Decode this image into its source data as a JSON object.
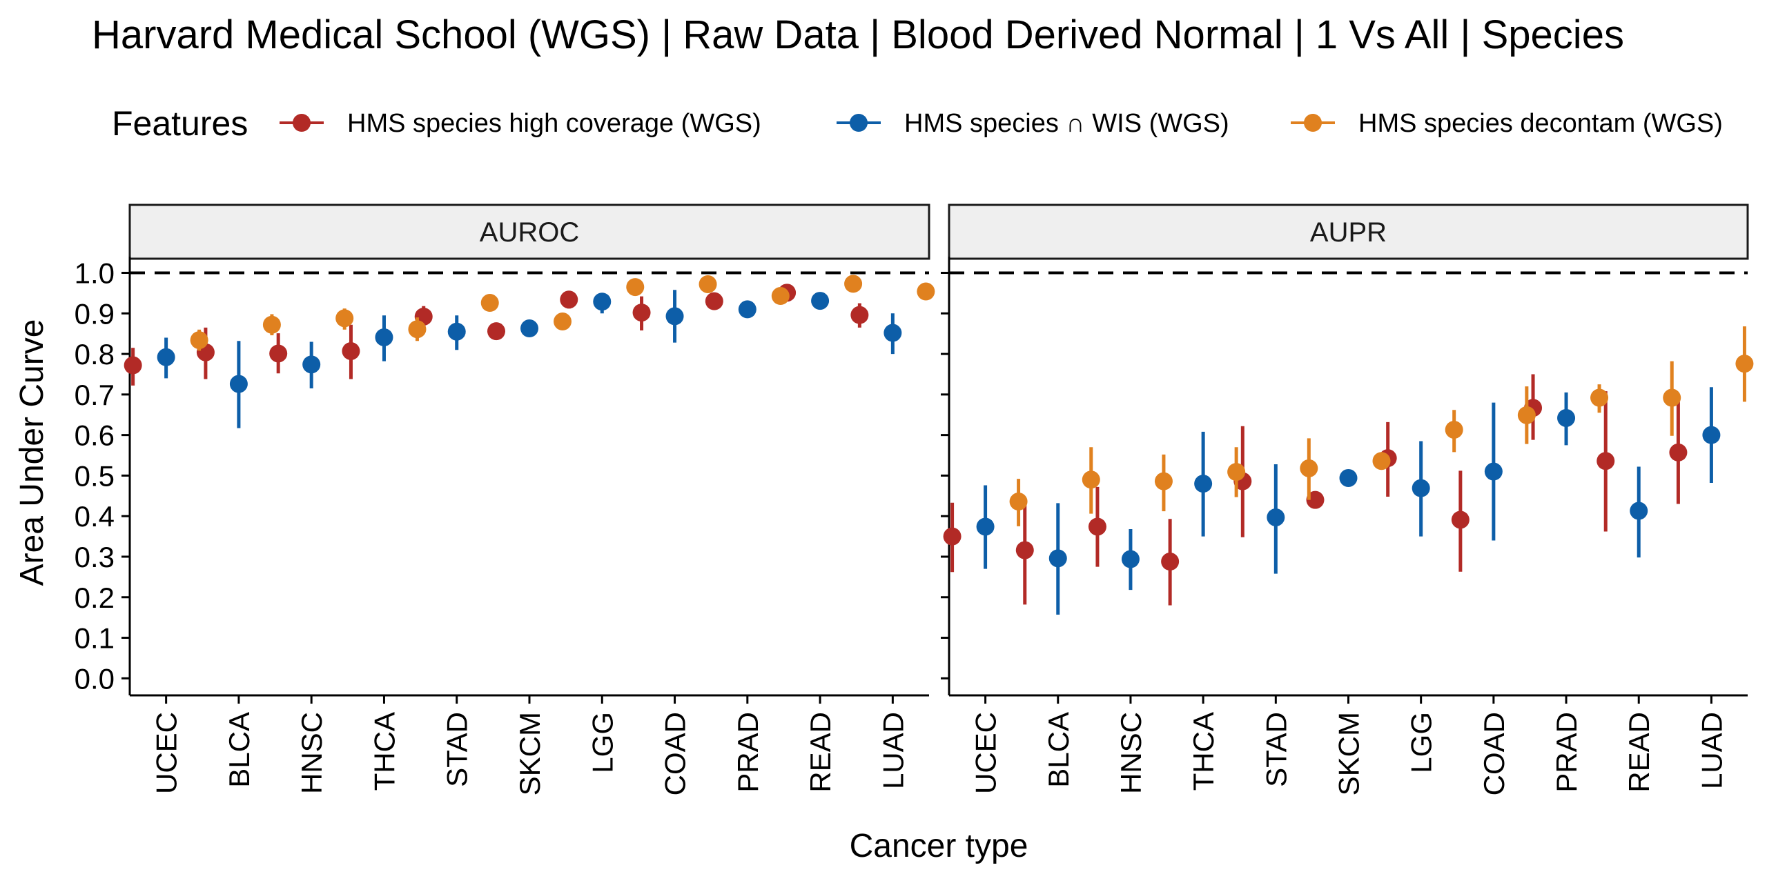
{
  "chart_data": {
    "type": "scatter",
    "title": "Harvard Medical School (WGS) | Raw Data | Blood Derived Normal | 1 Vs All | Species",
    "legend": {
      "title": "Features",
      "placement": "top",
      "entries": [
        {
          "name": "HMS species high coverage (WGS)",
          "color": "#B22A26"
        },
        {
          "name": "HMS species ∩ WIS (WGS)",
          "color": "#0D5EA8"
        },
        {
          "name": "HMS species decontam (WGS)",
          "color": "#E0811F"
        }
      ]
    },
    "xlabel": "Cancer type",
    "ylabel": "Area Under Curve",
    "ylim": [
      0,
      1
    ],
    "yticks": [
      "0.0",
      "0.1",
      "0.2",
      "0.3",
      "0.4",
      "0.5",
      "0.6",
      "0.7",
      "0.8",
      "0.9",
      "1.0"
    ],
    "reference_line": 1.0,
    "categories": [
      "UCEC",
      "BLCA",
      "HNSC",
      "THCA",
      "STAD",
      "SKCM",
      "LGG",
      "COAD",
      "PRAD",
      "READ",
      "LUAD"
    ],
    "panels": [
      {
        "name": "AUROC",
        "series": [
          {
            "name": "HMS species high coverage (WGS)",
            "values": [
              0.772,
              0.804,
              0.801,
              0.807,
              0.892,
              0.856,
              0.934,
              0.902,
              0.93,
              0.951,
              0.896
            ],
            "lower": [
              0.722,
              0.738,
              0.752,
              0.738,
              0.865,
              0.856,
              0.912,
              0.858,
              0.93,
              0.951,
              0.865
            ],
            "upper": [
              0.815,
              0.865,
              0.851,
              0.872,
              0.918,
              0.856,
              0.95,
              0.942,
              0.93,
              0.951,
              0.925
            ]
          },
          {
            "name": "HMS species ∩ WIS (WGS)",
            "values": [
              0.792,
              0.726,
              0.774,
              0.841,
              0.855,
              0.863,
              0.929,
              0.893,
              0.91,
              0.931,
              0.852
            ],
            "lower": [
              0.74,
              0.617,
              0.715,
              0.782,
              0.81,
              0.863,
              0.9,
              0.828,
              0.91,
              0.912,
              0.8
            ],
            "upper": [
              0.84,
              0.832,
              0.83,
              0.895,
              0.895,
              0.863,
              0.95,
              0.958,
              0.91,
              0.95,
              0.9
            ]
          },
          {
            "name": "HMS species decontam (WGS)",
            "values": [
              0.834,
              0.872,
              0.888,
              0.861,
              0.926,
              0.88,
              0.965,
              0.972,
              0.943,
              0.973,
              0.954
            ],
            "lower": [
              0.808,
              0.846,
              0.86,
              0.832,
              0.926,
              0.88,
              0.965,
              0.972,
              0.943,
              0.973,
              0.954
            ],
            "upper": [
              0.86,
              0.898,
              0.912,
              0.89,
              0.926,
              0.88,
              0.965,
              0.972,
              0.943,
              0.973,
              0.954
            ]
          }
        ]
      },
      {
        "name": "AUPR",
        "series": [
          {
            "name": "HMS species high coverage (WGS)",
            "values": [
              0.35,
              0.316,
              0.374,
              0.288,
              0.486,
              0.44,
              0.543,
              0.391,
              0.667,
              0.536,
              0.557
            ],
            "lower": [
              0.262,
              0.182,
              0.275,
              0.18,
              0.348,
              0.44,
              0.448,
              0.263,
              0.588,
              0.362,
              0.43
            ],
            "upper": [
              0.433,
              0.44,
              0.472,
              0.393,
              0.622,
              0.44,
              0.632,
              0.512,
              0.75,
              0.708,
              0.682
            ]
          },
          {
            "name": "HMS species ∩ WIS (WGS)",
            "values": [
              0.374,
              0.296,
              0.294,
              0.48,
              0.397,
              0.494,
              0.469,
              0.51,
              0.642,
              0.413,
              0.6
            ],
            "lower": [
              0.27,
              0.157,
              0.218,
              0.35,
              0.258,
              0.494,
              0.35,
              0.34,
              0.575,
              0.298,
              0.482
            ],
            "upper": [
              0.476,
              0.432,
              0.368,
              0.608,
              0.528,
              0.494,
              0.585,
              0.68,
              0.705,
              0.522,
              0.718
            ]
          },
          {
            "name": "HMS species decontam (WGS)",
            "values": [
              0.436,
              0.49,
              0.486,
              0.509,
              0.518,
              0.536,
              0.613,
              0.649,
              0.692,
              0.692,
              0.776
            ],
            "lower": [
              0.375,
              0.406,
              0.412,
              0.447,
              0.44,
              0.536,
              0.558,
              0.578,
              0.655,
              0.598,
              0.682
            ],
            "upper": [
              0.492,
              0.57,
              0.552,
              0.57,
              0.592,
              0.536,
              0.662,
              0.72,
              0.725,
              0.782,
              0.868
            ]
          }
        ]
      }
    ]
  }
}
